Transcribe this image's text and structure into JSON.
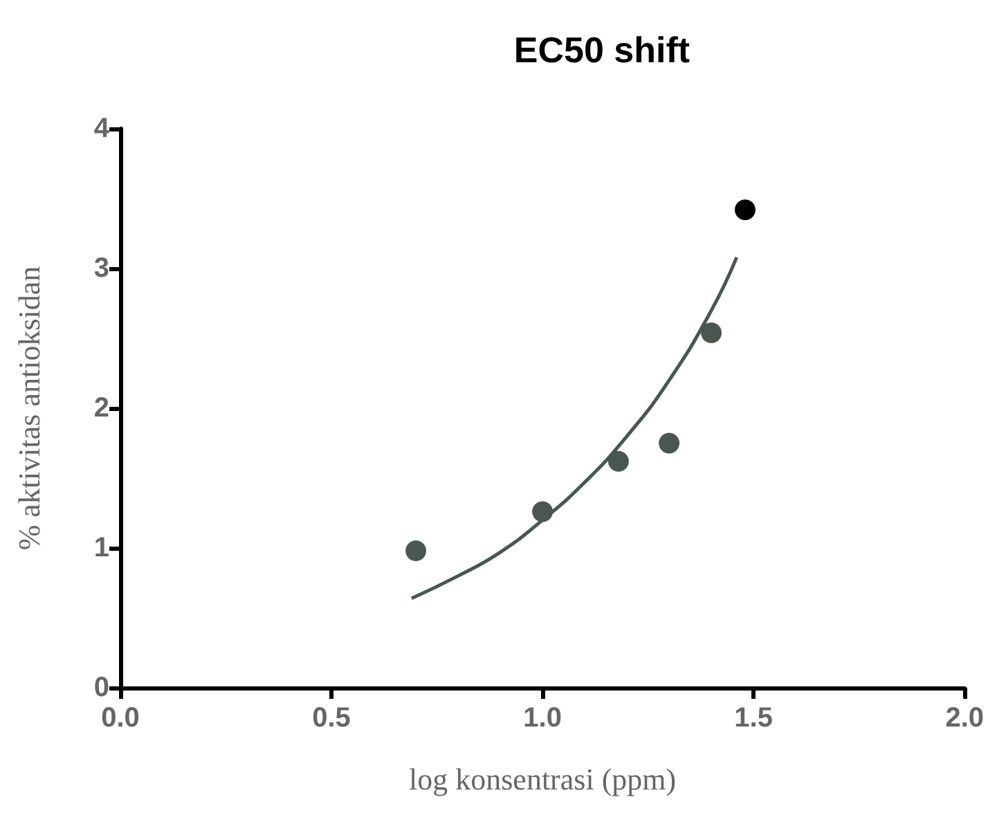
{
  "chart_data": {
    "type": "scatter",
    "title": "EC50 shift",
    "xlabel": "log konsentrasi (ppm)",
    "ylabel": "% aktivitas antioksidan",
    "xlim": [
      0,
      2
    ],
    "xticks": [
      {
        "value": 0,
        "label": "0.0"
      },
      {
        "value": 0.5,
        "label": "0.5"
      },
      {
        "value": 1,
        "label": "1.0"
      },
      {
        "value": 1.5,
        "label": "1.5"
      },
      {
        "value": 2,
        "label": "2.0"
      }
    ],
    "ylim": [
      0,
      4
    ],
    "yticks": [
      0,
      1,
      2,
      3,
      4
    ],
    "grid": false,
    "marker": "circle",
    "series": [
      {
        "color": "#4a5650",
        "x": [
          0.7,
          1.0,
          1.18,
          1.3,
          1.4
        ],
        "values": [
          0.98,
          1.26,
          1.62,
          1.75,
          2.54
        ]
      },
      {
        "color": "#000000",
        "x": [
          1.48
        ],
        "values": [
          3.42
        ]
      },
      {
        "type": "line",
        "marker": "none",
        "line_style": "solid",
        "color": "#4a5650",
        "x": [
          0.69,
          0.8,
          0.9,
          1.0,
          1.1,
          1.2,
          1.3,
          1.4,
          1.46
        ],
        "values": [
          0.64,
          0.8,
          0.97,
          1.2,
          1.47,
          1.8,
          2.2,
          2.7,
          3.08
        ]
      }
    ]
  }
}
